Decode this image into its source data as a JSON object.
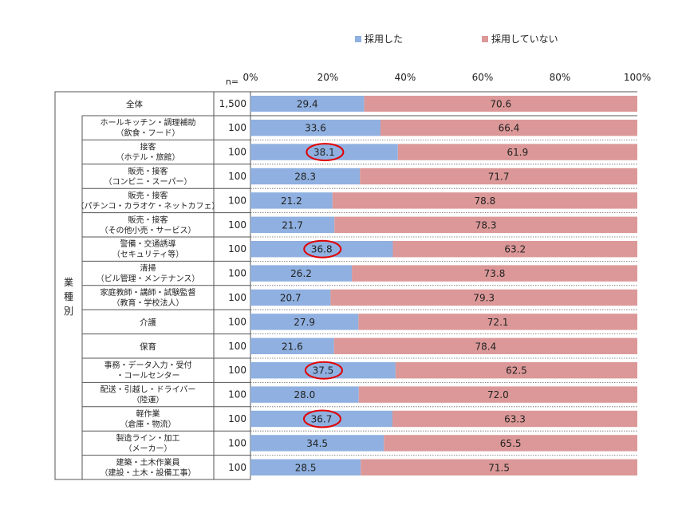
{
  "chart_data": {
    "type": "bar",
    "stacked": true,
    "orientation": "horizontal",
    "legend": [
      {
        "name": "採用した",
        "color": "#8fb0e0"
      },
      {
        "name": "採用していない",
        "color": "#dc9898"
      }
    ],
    "legend_position": "top",
    "n_label": "n=",
    "x_ticks": [
      "0%",
      "20%",
      "40%",
      "60%",
      "80%",
      "100%"
    ],
    "xlim": [
      0,
      100
    ],
    "group_label": "業種別",
    "rows": [
      {
        "label1": "全体",
        "label2": "",
        "n": "1,500",
        "adopted": 29.4,
        "not_adopted": 70.6,
        "circled": false,
        "group": false
      },
      {
        "label1": "ホールキッチン・調理補助",
        "label2": "（飲食・フード）",
        "n": "100",
        "adopted": 33.6,
        "not_adopted": 66.4,
        "circled": false,
        "group": true
      },
      {
        "label1": "接客",
        "label2": "（ホテル・旅館）",
        "n": "100",
        "adopted": 38.1,
        "not_adopted": 61.9,
        "circled": true,
        "group": true
      },
      {
        "label1": "販売・接客",
        "label2": "（コンビニ・スーパー）",
        "n": "100",
        "adopted": 28.3,
        "not_adopted": 71.7,
        "circled": false,
        "group": true
      },
      {
        "label1": "販売・接客",
        "label2": "（パチンコ・カラオケ・ネットカフェ）",
        "n": "100",
        "adopted": 21.2,
        "not_adopted": 78.8,
        "circled": false,
        "group": true
      },
      {
        "label1": "販売・接客",
        "label2": "（その他小売・サービス）",
        "n": "100",
        "adopted": 21.7,
        "not_adopted": 78.3,
        "circled": false,
        "group": true
      },
      {
        "label1": "警備・交通誘導",
        "label2": "（セキュリティ等）",
        "n": "100",
        "adopted": 36.8,
        "not_adopted": 63.2,
        "circled": true,
        "group": true
      },
      {
        "label1": "清掃",
        "label2": "（ビル管理・メンテナンス）",
        "n": "100",
        "adopted": 26.2,
        "not_adopted": 73.8,
        "circled": false,
        "group": true
      },
      {
        "label1": "家庭教師・講師・試験監督",
        "label2": "（教育・学校法人）",
        "n": "100",
        "adopted": 20.7,
        "not_adopted": 79.3,
        "circled": false,
        "group": true
      },
      {
        "label1": "介護",
        "label2": "",
        "n": "100",
        "adopted": 27.9,
        "not_adopted": 72.1,
        "circled": false,
        "group": true
      },
      {
        "label1": "保育",
        "label2": "",
        "n": "100",
        "adopted": 21.6,
        "not_adopted": 78.4,
        "circled": false,
        "group": true
      },
      {
        "label1": "事務・データ入力・受付",
        "label2": "・コールセンター",
        "n": "100",
        "adopted": 37.5,
        "not_adopted": 62.5,
        "circled": true,
        "group": true
      },
      {
        "label1": "配送・引越し・ドライバー",
        "label2": "（陸運）",
        "n": "100",
        "adopted": 28.0,
        "not_adopted": 72.0,
        "circled": false,
        "group": true
      },
      {
        "label1": "軽作業",
        "label2": "（倉庫・物流）",
        "n": "100",
        "adopted": 36.7,
        "not_adopted": 63.3,
        "circled": true,
        "group": true
      },
      {
        "label1": "製造ライン・加工",
        "label2": "（メーカー）",
        "n": "100",
        "adopted": 34.5,
        "not_adopted": 65.5,
        "circled": false,
        "group": true
      },
      {
        "label1": "建築・土木作業員",
        "label2": "（建設・土木・設備工事）",
        "n": "100",
        "adopted": 28.5,
        "not_adopted": 71.5,
        "circled": false,
        "group": true
      }
    ],
    "colors": {
      "adopted": "#8fb0e0",
      "not_adopted": "#dc9898",
      "circle": "#e00000",
      "grid": "#888888"
    }
  }
}
